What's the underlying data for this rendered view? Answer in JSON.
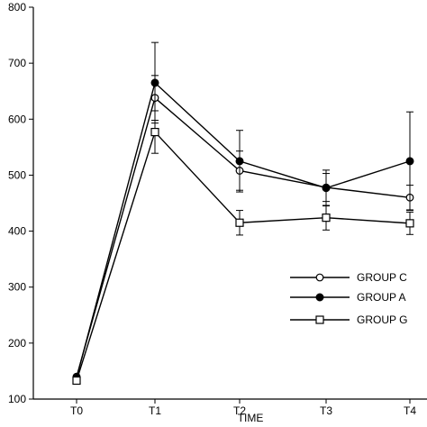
{
  "chart_data": {
    "type": "line",
    "categories": [
      "T0",
      "T1",
      "T2",
      "T3",
      "T4"
    ],
    "xlabel": "TIME",
    "ylabel": "",
    "ylim": [
      100,
      800
    ],
    "yticks": [
      100,
      200,
      300,
      400,
      500,
      600,
      700,
      800
    ],
    "ytick_labels": [
      "100",
      "200",
      "300",
      "400",
      "500",
      "600",
      "700",
      "800"
    ],
    "grid": false,
    "legend_position": "bottom-right",
    "series": [
      {
        "name": "GROUP C",
        "marker": "open-circle",
        "values": [
          140,
          638,
          508,
          478,
          460
        ],
        "errors": [
          0,
          40,
          35,
          25,
          22
        ]
      },
      {
        "name": "GROUP A",
        "marker": "filled-circle",
        "values": [
          138,
          665,
          525,
          477,
          525
        ],
        "errors": [
          0,
          72,
          55,
          32,
          88
        ]
      },
      {
        "name": "GROUP G",
        "marker": "open-square",
        "values": [
          133,
          577,
          415,
          424,
          414
        ],
        "errors": [
          0,
          38,
          22,
          22,
          20
        ]
      }
    ]
  }
}
